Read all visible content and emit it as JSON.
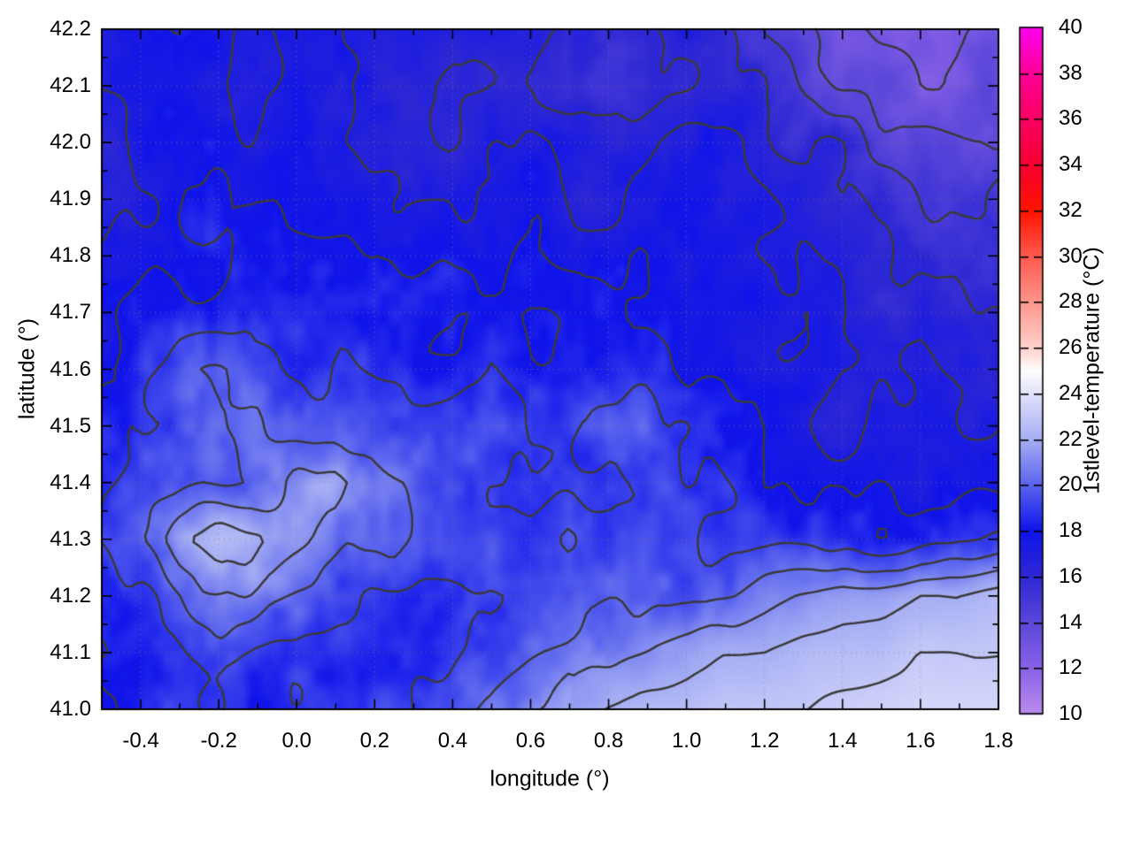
{
  "chart_data": {
    "type": "heatmap",
    "xlabel": "longitude (°)",
    "ylabel": "latitude (°)",
    "colorbar_label": "1stlevel-temperature (°C)",
    "xlim": [
      -0.5,
      1.8
    ],
    "ylim": [
      41.0,
      42.2
    ],
    "clim": [
      10,
      40
    ],
    "x_tick_labels": [
      "-0.4",
      "-0.2",
      "0.0",
      "0.2",
      "0.4",
      "0.6",
      "0.8",
      "1.0",
      "1.2",
      "1.4",
      "1.6",
      "1.8"
    ],
    "y_tick_labels": [
      "41.0",
      "41.1",
      "41.2",
      "41.3",
      "41.4",
      "41.5",
      "41.6",
      "41.7",
      "41.8",
      "41.9",
      "42.0",
      "42.1",
      "42.2"
    ],
    "cb_tick_labels": [
      "10",
      "12",
      "14",
      "16",
      "18",
      "20",
      "22",
      "24",
      "26",
      "28",
      "30",
      "32",
      "34",
      "36",
      "38",
      "40"
    ],
    "x_minor_step": 0.1,
    "y_minor_step": 0.05,
    "grid_dotted": true,
    "contour_levels": [
      13,
      14,
      15,
      16,
      17,
      18,
      19,
      20,
      21,
      22,
      23
    ],
    "contour_color": "#3a3a3a",
    "grid_color": "#808080",
    "border_color": "#000000",
    "text_color": "#000000",
    "palette": [
      [
        10,
        "#bc8cee"
      ],
      [
        12,
        "#8a62e8"
      ],
      [
        14,
        "#5c48da"
      ],
      [
        16,
        "#2e28d4"
      ],
      [
        18,
        "#1014ea"
      ],
      [
        20,
        "#5a64ee"
      ],
      [
        22,
        "#a6aef4"
      ],
      [
        24,
        "#e2e2fb"
      ],
      [
        25,
        "#ffffff"
      ],
      [
        26,
        "#ffd2cd"
      ],
      [
        28,
        "#ff968c"
      ],
      [
        30,
        "#ff5a50"
      ],
      [
        32,
        "#ff1400"
      ],
      [
        34,
        "#f60032"
      ],
      [
        36,
        "#fa0064"
      ],
      [
        38,
        "#ff0096"
      ],
      [
        40,
        "#ff00f0"
      ]
    ],
    "grid": {
      "lon_start": -0.5,
      "lon_step": 0.1,
      "lat_start": 42.2,
      "lat_step": -0.1,
      "values": [
        [
          17.2,
          17.6,
          18,
          17.5,
          17.2,
          17,
          17.4,
          17,
          16.6,
          16.2,
          16.5,
          16.8,
          15.8,
          15.4,
          16,
          16.5,
          16.2,
          15.2,
          14.2,
          13.6,
          13,
          12.6,
          12.5,
          13
        ],
        [
          17,
          17.4,
          17.6,
          17.2,
          17,
          17.4,
          17,
          16.6,
          16.2,
          15.8,
          16.2,
          16.4,
          15.4,
          15,
          15.6,
          16.2,
          16.4,
          16,
          15,
          14.2,
          13.6,
          13.2,
          13.2,
          13.6
        ],
        [
          16.6,
          17,
          17.5,
          17.5,
          17.4,
          17.5,
          17.2,
          17,
          16.6,
          16.2,
          16.6,
          17,
          16.6,
          16.2,
          16.6,
          17,
          17,
          16.6,
          16,
          15.6,
          15,
          14.6,
          14.2,
          14.2
        ],
        [
          16.2,
          17,
          17.6,
          18,
          18,
          17.6,
          17.5,
          17.5,
          17,
          17,
          17.4,
          17.5,
          17,
          17,
          17.4,
          17.5,
          17,
          17,
          16.6,
          16,
          15.6,
          15.5,
          15.2,
          15.2
        ],
        [
          17,
          17.5,
          18,
          18.2,
          18.4,
          18,
          18,
          18,
          17.6,
          17.6,
          18,
          18,
          17.6,
          17.6,
          18,
          17.6,
          17.5,
          17,
          17,
          16.6,
          16.2,
          16,
          15.6,
          15.6
        ],
        [
          17.5,
          18,
          18.4,
          18.5,
          18.5,
          19,
          18.5,
          18.2,
          18,
          18,
          18.4,
          18,
          18,
          18,
          18,
          18,
          17.6,
          17.5,
          17,
          17,
          16.6,
          16.5,
          16,
          16
        ],
        [
          18,
          18.4,
          19.4,
          20,
          19.6,
          19.2,
          19,
          18.6,
          18.5,
          18.5,
          18.6,
          18.5,
          18.2,
          18.2,
          18.5,
          18,
          18,
          17.6,
          17.5,
          17,
          17,
          17,
          16.6,
          16.6
        ],
        [
          18,
          18.5,
          19,
          19.6,
          20.2,
          19.6,
          19.2,
          19,
          19,
          19.4,
          19,
          18.6,
          18.6,
          19.2,
          19.2,
          18.6,
          18.2,
          18,
          17.6,
          16.6,
          17.4,
          17,
          17,
          17
        ],
        [
          18.5,
          19,
          19.2,
          19.6,
          20,
          21,
          21.4,
          20,
          19.5,
          19,
          19,
          19,
          18.6,
          18.6,
          19,
          18.6,
          18.5,
          18,
          18,
          18,
          17.6,
          17.6,
          17.5,
          17.5
        ],
        [
          19,
          20,
          21.5,
          22.5,
          22,
          21,
          20.5,
          20,
          19.6,
          19.5,
          19,
          19,
          20,
          19,
          19,
          19,
          18.6,
          18.5,
          18.5,
          18.5,
          18,
          18.5,
          19,
          19.5
        ],
        [
          18.5,
          19,
          20,
          21,
          20.5,
          20,
          19.5,
          19,
          19,
          19,
          18.6,
          19,
          19,
          19.5,
          19.5,
          19.5,
          20,
          20.5,
          21,
          21.5,
          21.6,
          22,
          22,
          22.5
        ],
        [
          18,
          18.5,
          19,
          19.5,
          19,
          19,
          18.6,
          18.5,
          19,
          19,
          19,
          19.5,
          20,
          20.5,
          21,
          21.5,
          22,
          22,
          22.4,
          22.5,
          22.6,
          23,
          23,
          23
        ],
        [
          18,
          18.5,
          18.5,
          19,
          18.6,
          18.5,
          18.5,
          19,
          19,
          19.5,
          20,
          21,
          21.5,
          22,
          22.4,
          22.5,
          23,
          23,
          23,
          23.2,
          23.4,
          23.5,
          23.5,
          23.6
        ]
      ]
    }
  }
}
